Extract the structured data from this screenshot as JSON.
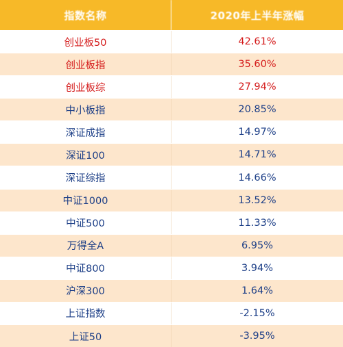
{
  "header": {
    "name_label": "指数名称",
    "change_label": "2020年上半年涨幅"
  },
  "colors": {
    "header_bg": "#f7b928",
    "row_alt_bg": "#fde6cc",
    "positive_strong": "#d41a1a",
    "default_text": "#1d3f87"
  },
  "rows": [
    {
      "name": "创业板50",
      "value": "42.61%",
      "tone": "red"
    },
    {
      "name": "创业板指",
      "value": "35.60%",
      "tone": "red"
    },
    {
      "name": "创业板综",
      "value": "27.94%",
      "tone": "red"
    },
    {
      "name": "中小板指",
      "value": "20.85%",
      "tone": "blue"
    },
    {
      "name": "深证成指",
      "value": "14.97%",
      "tone": "blue"
    },
    {
      "name": "深证100",
      "value": "14.71%",
      "tone": "blue"
    },
    {
      "name": "深证综指",
      "value": "14.66%",
      "tone": "blue"
    },
    {
      "name": "中证1000",
      "value": "13.52%",
      "tone": "blue"
    },
    {
      "name": "中证500",
      "value": "11.33%",
      "tone": "blue"
    },
    {
      "name": "万得全A",
      "value": "6.95%",
      "tone": "blue"
    },
    {
      "name": "中证800",
      "value": "3.94%",
      "tone": "blue"
    },
    {
      "name": "沪深300",
      "value": "1.64%",
      "tone": "blue"
    },
    {
      "name": "上证指数",
      "value": "-2.15%",
      "tone": "blue"
    },
    {
      "name": "上证50",
      "value": "-3.95%",
      "tone": "blue"
    }
  ]
}
